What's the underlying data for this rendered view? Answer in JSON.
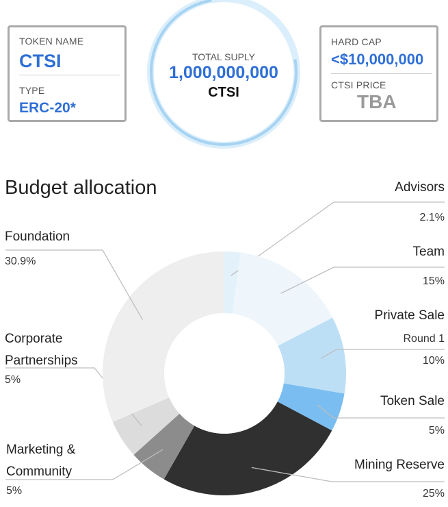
{
  "token_info": {
    "token_name_label": "TOKEN NAME",
    "token_name": "CTSI",
    "type_label": "TYPE",
    "type": "ERC-20*",
    "total_supply_label": "TOTAL SUPLY",
    "total_supply_value": "1,000,000,000",
    "total_supply_unit": "CTSI",
    "hard_cap_label": "HARD CAP",
    "hard_cap": "<$10,000,000",
    "price_label": "CTSI PRICE",
    "price": "TBA"
  },
  "colors": {
    "accent_blue": "#2f6fd6",
    "ring_light": "#dbeefb",
    "ring_dark": "#a6d3f2"
  },
  "chart_data": {
    "type": "pie",
    "variant": "donut",
    "title": "Budget allocation",
    "slices": [
      {
        "label": "Advisors",
        "sub": "",
        "value": 2.1,
        "display": "2.1%",
        "color": "#e3f1fb"
      },
      {
        "label": "Team",
        "sub": "",
        "value": 15,
        "display": "15%",
        "color": "#eef6fc"
      },
      {
        "label": "Private Sale",
        "sub": "Round 1",
        "value": 10,
        "display": "10%",
        "color": "#bcdff6"
      },
      {
        "label": "Token Sale",
        "sub": "",
        "value": 5,
        "display": "5%",
        "color": "#7abdf0"
      },
      {
        "label": "Mining Reserve",
        "sub": "",
        "value": 25,
        "display": "25%",
        "color": "#303030"
      },
      {
        "label": "Marketing & Community",
        "sub": "",
        "value": 5,
        "display": "5%",
        "color": "#8c8c8c"
      },
      {
        "label": "Corporate Partnerships",
        "sub": "",
        "value": 5,
        "display": "5%",
        "color": "#dcdcdc"
      },
      {
        "label": "Foundation",
        "sub": "",
        "value": 30.9,
        "display": "30.9%",
        "color": "#eeeeee"
      }
    ]
  }
}
